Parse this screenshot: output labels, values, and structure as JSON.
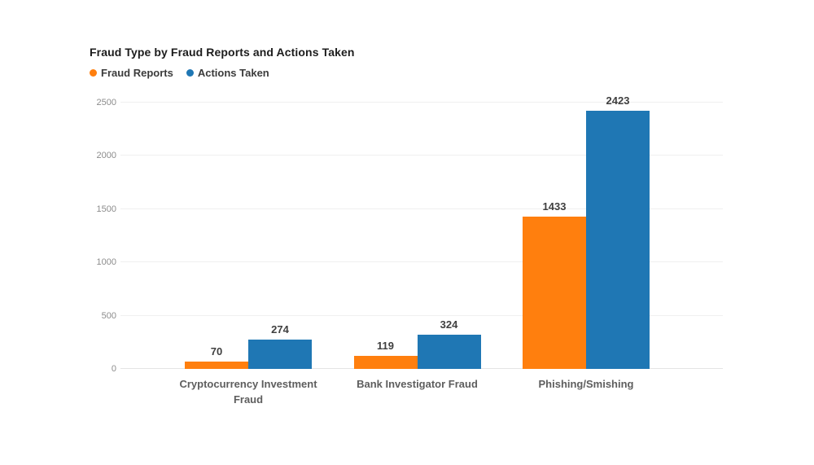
{
  "title": "Fraud Type by Fraud Reports and Actions Taken",
  "chart_data": {
    "type": "bar",
    "title": "Fraud Type by Fraud Reports and Actions Taken",
    "categories": [
      "Cryptocurrency Investment Fraud",
      "Bank Investigator Fraud",
      "Phishing/Smishing"
    ],
    "series": [
      {
        "name": "Fraud Reports",
        "color": "#FF7F0E",
        "values": [
          70,
          119,
          1433
        ]
      },
      {
        "name": "Actions Taken",
        "color": "#1F77B4",
        "values": [
          274,
          324,
          2423
        ]
      }
    ],
    "xlabel": "",
    "ylabel": "",
    "ylim": [
      0,
      2500
    ],
    "yticks": [
      0,
      500,
      1000,
      1500,
      2000,
      2500
    ],
    "grid": true,
    "legend_position": "top-left",
    "data_labels": true
  }
}
